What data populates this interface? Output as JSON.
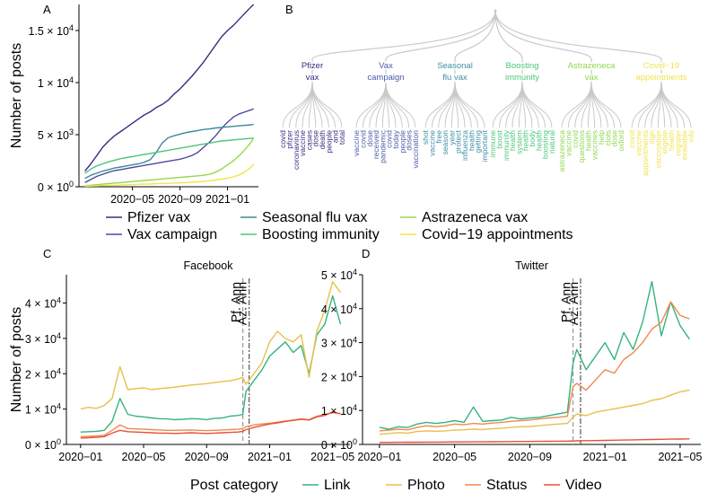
{
  "chart_data": [
    {
      "panel": "A",
      "type": "line",
      "title": "",
      "xlabel": "",
      "ylabel": "Number of posts",
      "x_ticks": [
        "2020−05",
        "2020−09",
        "2021−01"
      ],
      "x_tick_months": [
        4,
        8,
        12
      ],
      "x_range_months": [
        -0.5,
        14.6
      ],
      "ylim": [
        0,
        17500
      ],
      "y_ticks": [
        {
          "value": 0,
          "base": "0",
          "exp": "0"
        },
        {
          "value": 5000,
          "base": "5",
          "exp": "3"
        },
        {
          "value": 10000,
          "base": "1",
          "exp": "4"
        },
        {
          "value": 15000,
          "base": "1.5",
          "exp": "4"
        }
      ],
      "x_months": [
        0,
        0.5,
        1,
        1.5,
        2,
        2.5,
        3,
        3.5,
        4,
        4.5,
        5,
        5.5,
        6,
        6.5,
        7,
        7.5,
        8,
        8.5,
        9,
        9.5,
        10,
        10.5,
        11,
        11.5,
        12,
        12.5,
        13,
        13.5,
        14,
        14.2
      ],
      "series": [
        {
          "name": "Pfizer vax",
          "color": "#3b2a82",
          "values": [
            1500,
            2200,
            3000,
            3800,
            4400,
            4900,
            5300,
            5700,
            6100,
            6500,
            6900,
            7200,
            7600,
            7900,
            8300,
            8900,
            9400,
            10000,
            10600,
            11300,
            12000,
            12800,
            13600,
            14400,
            15000,
            15500,
            16100,
            16700,
            17300,
            17500
          ]
        },
        {
          "name": "Vax campaign",
          "color": "#4f4a9e",
          "values": [
            400,
            700,
            1000,
            1200,
            1400,
            1550,
            1650,
            1750,
            1850,
            1950,
            2050,
            2150,
            2250,
            2350,
            2450,
            2550,
            2650,
            2800,
            3000,
            3300,
            3800,
            4300,
            4900,
            5600,
            6200,
            6700,
            7000,
            7200,
            7400,
            7500
          ]
        },
        {
          "name": "Seasonal flu vax",
          "color": "#3b8a9a",
          "values": [
            800,
            1100,
            1300,
            1500,
            1650,
            1800,
            1900,
            2000,
            2100,
            2200,
            2350,
            2600,
            3300,
            4200,
            4700,
            4900,
            5050,
            5200,
            5300,
            5400,
            5500,
            5550,
            5650,
            5700,
            5750,
            5800,
            5850,
            5900,
            5950,
            6000
          ]
        },
        {
          "name": "Boosting immunity",
          "color": "#4ec576",
          "values": [
            1300,
            1700,
            2000,
            2200,
            2400,
            2550,
            2700,
            2800,
            2900,
            3000,
            3100,
            3200,
            3300,
            3400,
            3500,
            3600,
            3700,
            3800,
            3900,
            4000,
            4100,
            4200,
            4300,
            4400,
            4450,
            4500,
            4550,
            4600,
            4650,
            4700
          ]
        },
        {
          "name": "Astrazeneca vax",
          "color": "#96d84d",
          "values": [
            100,
            150,
            200,
            250,
            300,
            350,
            400,
            450,
            500,
            550,
            600,
            650,
            700,
            750,
            800,
            850,
            900,
            950,
            1000,
            1050,
            1100,
            1200,
            1400,
            1700,
            2100,
            2500,
            3000,
            3600,
            4300,
            4700
          ]
        },
        {
          "name": "Covid−19 appointments",
          "color": "#f3e54a",
          "values": [
            50,
            70,
            90,
            110,
            130,
            150,
            170,
            190,
            210,
            230,
            250,
            270,
            290,
            310,
            330,
            350,
            370,
            400,
            430,
            470,
            520,
            580,
            650,
            730,
            820,
            950,
            1150,
            1450,
            1900,
            2200
          ]
        }
      ]
    },
    {
      "panel": "B",
      "type": "diagram",
      "title": "",
      "groups": [
        {
          "label_lines": [
            "Pfizer",
            "vax"
          ],
          "color": "#3b2a82",
          "words": [
            "covid",
            "pfizer",
            "coronavirus",
            "vaccine",
            "cases",
            "dose",
            "death",
            "people",
            "and",
            "total"
          ]
        },
        {
          "label_lines": [
            "Vax",
            "campaign"
          ],
          "color": "#4c5aa8",
          "words": [
            "vaccine",
            "covid",
            "dose",
            "received",
            "pandemic",
            "covid",
            "today",
            "people",
            "doses",
            "vaccination"
          ]
        },
        {
          "label_lines": [
            "Seasonal",
            "flu vax"
          ],
          "color": "#3d8fa6",
          "words": [
            "shot",
            "vaccine",
            "free",
            "season",
            "year",
            "protect",
            "influenza",
            "health",
            "getting",
            "important"
          ]
        },
        {
          "label_lines": [
            "Boosting",
            "immunity"
          ],
          "color": "#4cc77a",
          "words": [
            "immune",
            "boost",
            "immunity",
            "health",
            "system",
            "health",
            "body",
            "health",
            "boosting",
            "natural"
          ]
        },
        {
          "label_lines": [
            "Astrazeneca",
            "vax"
          ],
          "color": "#8fd64f",
          "words": [
            "astrazeneca",
            "vaccine",
            "covid",
            "questions",
            "health",
            "vaccines",
            "help",
            "clots",
            "dose",
            "oxford"
          ]
        },
        {
          "label_lines": [
            "Covid−19",
            "appointments"
          ],
          "color": "#f0e44d",
          "words": [
            "covid",
            "vaccine",
            "appointments",
            "sign",
            "vaccination",
            "eligible",
            "health",
            "register",
            "available",
            "info"
          ]
        }
      ]
    },
    {
      "panel": "C",
      "type": "line",
      "title": "Facebook",
      "xlabel": "",
      "ylabel": "Number of posts",
      "x_ticks": [
        "2020−01",
        "2020−05",
        "2020−09",
        "2021−01",
        "2021−05"
      ],
      "x_tick_months": [
        0,
        4,
        8,
        12,
        16
      ],
      "x_range_months": [
        -0.9,
        17.1
      ],
      "ylim": [
        0,
        48000
      ],
      "y_ticks": [
        {
          "value": 0,
          "base": "0",
          "exp": "0"
        },
        {
          "value": 10000,
          "base": "1",
          "exp": "4"
        },
        {
          "value": 20000,
          "base": "2",
          "exp": "4"
        },
        {
          "value": 30000,
          "base": "3",
          "exp": "4"
        },
        {
          "value": 40000,
          "base": "4",
          "exp": "4"
        }
      ],
      "annotations": [
        {
          "label": "Pf. Ann",
          "month": 10.3
        },
        {
          "label": "Az. Ann",
          "month": 10.7
        }
      ],
      "x_months": [
        0,
        0.5,
        1,
        1.5,
        2,
        2.5,
        3,
        3.5,
        4,
        4.5,
        5,
        5.5,
        6,
        6.5,
        7,
        7.5,
        8,
        8.5,
        9,
        9.5,
        10,
        10.3,
        10.5,
        11,
        11.5,
        12,
        12.5,
        13,
        13.5,
        14,
        14.5,
        15,
        15.5,
        16,
        16.5
      ],
      "series": [
        {
          "name": "Link",
          "color": "#36b37e",
          "values": [
            3500,
            3600,
            3700,
            4000,
            6500,
            13000,
            8500,
            8000,
            7800,
            7500,
            7300,
            7200,
            7000,
            7100,
            7300,
            7200,
            7000,
            7400,
            7500,
            8000,
            8200,
            8500,
            15000,
            18000,
            21000,
            25000,
            27000,
            29000,
            26000,
            28000,
            20000,
            31000,
            34000,
            42000,
            34000
          ]
        },
        {
          "name": "Photo",
          "color": "#e8c04c",
          "values": [
            10000,
            10500,
            10200,
            11000,
            13000,
            22000,
            15500,
            15800,
            16000,
            15500,
            15800,
            16000,
            16200,
            16500,
            16800,
            17000,
            17200,
            17500,
            17800,
            18000,
            18500,
            19000,
            17000,
            20000,
            23000,
            29000,
            32000,
            30000,
            29000,
            31000,
            19000,
            32000,
            38000,
            46000,
            43000
          ]
        },
        {
          "name": "Status",
          "color": "#f0894e",
          "values": [
            2200,
            2300,
            2400,
            2600,
            4000,
            5500,
            4500,
            4400,
            4300,
            4200,
            4100,
            4000,
            4000,
            4050,
            4100,
            4000,
            3900,
            4000,
            4100,
            4200,
            4300,
            4500,
            5000,
            5500,
            5800,
            6000,
            6300,
            6600,
            6900,
            7200,
            7000,
            8000,
            8500,
            9000,
            8800
          ]
        },
        {
          "name": "Video",
          "color": "#e8503a",
          "values": [
            1800,
            1900,
            2000,
            2200,
            3200,
            4000,
            3600,
            3500,
            3400,
            3300,
            3200,
            3200,
            3100,
            3200,
            3300,
            3200,
            3100,
            3200,
            3300,
            3400,
            3500,
            3700,
            4200,
            4800,
            5300,
            5800,
            6100,
            6500,
            6800,
            7100,
            6900,
            7800,
            8200,
            9200,
            8600
          ]
        }
      ]
    },
    {
      "panel": "D",
      "type": "line",
      "title": "Twitter",
      "xlabel": "",
      "ylabel": "",
      "x_ticks": [
        "2020−01",
        "2020−05",
        "2020−09",
        "2021−01",
        "2021−05"
      ],
      "x_tick_months": [
        0,
        4,
        8,
        12,
        16
      ],
      "x_range_months": [
        -0.9,
        17.1
      ],
      "ylim": [
        0,
        50000
      ],
      "y_ticks": [
        {
          "value": 0,
          "base": "0",
          "exp": "0"
        },
        {
          "value": 10000,
          "base": "1",
          "exp": "4"
        },
        {
          "value": 20000,
          "base": "2",
          "exp": "4"
        },
        {
          "value": 30000,
          "base": "3",
          "exp": "4"
        },
        {
          "value": 40000,
          "base": "4",
          "exp": "4"
        },
        {
          "value": 50000,
          "base": "5",
          "exp": "4"
        }
      ],
      "annotations": [
        {
          "label": "Pf. Ann",
          "month": 10.3
        },
        {
          "label": "Az. Ann",
          "month": 10.7
        }
      ],
      "x_months": [
        0,
        0.5,
        1,
        1.5,
        2,
        2.5,
        3,
        3.5,
        4,
        4.5,
        5,
        5.5,
        6,
        6.5,
        7,
        7.5,
        8,
        8.5,
        9,
        9.5,
        10,
        10.3,
        10.5,
        11,
        11.5,
        12,
        12.5,
        13,
        13.5,
        14,
        14.5,
        15,
        15.5,
        16,
        16.5
      ],
      "series": [
        {
          "name": "Link",
          "color": "#36b37e",
          "values": [
            5000,
            4500,
            5200,
            5000,
            6000,
            6500,
            6200,
            6500,
            7000,
            6500,
            11000,
            6800,
            7000,
            7200,
            8000,
            7500,
            7800,
            8000,
            8500,
            9000,
            9500,
            24000,
            28000,
            22000,
            26000,
            30000,
            25000,
            33000,
            28000,
            36000,
            48000,
            32000,
            42000,
            35000,
            31000
          ]
        },
        {
          "name": "Photo",
          "color": "#e8c04c",
          "values": [
            3000,
            3200,
            3500,
            3300,
            3800,
            4000,
            3900,
            4000,
            4200,
            4300,
            4500,
            4400,
            4600,
            4800,
            5000,
            5200,
            5300,
            5500,
            5800,
            6000,
            6200,
            8000,
            9000,
            8500,
            9500,
            10000,
            10500,
            11000,
            11500,
            12000,
            13000,
            13500,
            14500,
            15500,
            16000
          ]
        },
        {
          "name": "Status",
          "color": "#f0894e",
          "values": [
            4000,
            4200,
            4500,
            4300,
            5000,
            5500,
            5200,
            5500,
            6000,
            5800,
            6200,
            6000,
            6300,
            6500,
            6800,
            7000,
            7200,
            7500,
            7800,
            8000,
            8300,
            17000,
            18000,
            16000,
            19000,
            22000,
            21000,
            25000,
            27000,
            30000,
            34000,
            36000,
            42000,
            38000,
            37000
          ]
        },
        {
          "name": "Video",
          "color": "#e8503a",
          "values": [
            600,
            620,
            640,
            650,
            660,
            680,
            700,
            720,
            740,
            750,
            760,
            780,
            800,
            820,
            840,
            860,
            880,
            900,
            920,
            950,
            980,
            1000,
            1050,
            1100,
            1150,
            1200,
            1250,
            1300,
            1350,
            1400,
            1450,
            1500,
            1550,
            1600,
            1650
          ]
        }
      ]
    }
  ],
  "legend_top": [
    {
      "label": "Pfizer vax",
      "color": "#3b2a82"
    },
    {
      "label": "Vax campaign",
      "color": "#4f4a9e"
    },
    {
      "label": "Seasonal flu vax",
      "color": "#3b8a9a"
    },
    {
      "label": "Boosting immunity",
      "color": "#4ec576"
    },
    {
      "label": "Astrazeneca vax",
      "color": "#96d84d"
    },
    {
      "label": "Covid−19 appointments",
      "color": "#f3e54a"
    }
  ],
  "legend_bottom": {
    "title": "Post category",
    "items": [
      {
        "label": "Link",
        "color": "#36b37e"
      },
      {
        "label": "Photo",
        "color": "#e8c04c"
      },
      {
        "label": "Status",
        "color": "#f0894e"
      },
      {
        "label": "Video",
        "color": "#e8503a"
      }
    ]
  },
  "panel_labels": {
    "A": "A",
    "B": "B",
    "C": "C",
    "D": "D"
  }
}
